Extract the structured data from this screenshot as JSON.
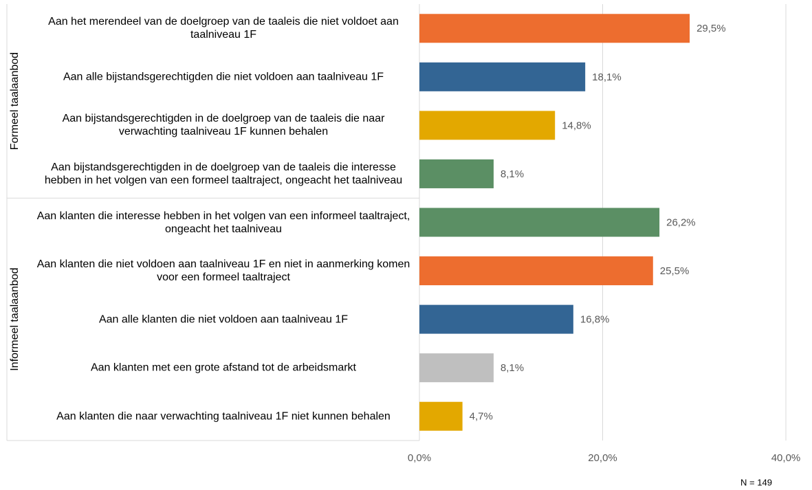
{
  "chart_data": {
    "type": "bar",
    "orientation": "horizontal",
    "groups": [
      {
        "name": "Formeel taalaanbod",
        "categories": [
          "Aan het merendeel van de doelgroep van de taaleis die niet voldoet aan taalniveau 1F",
          "Aan alle bijstandsgerechtigden die niet voldoen aan taalniveau 1F",
          "Aan bijstandsgerechtigden in de doelgroep van de taaleis die naar verwachting taalniveau 1F kunnen behalen",
          "Aan bijstandsgerechtigden in de doelgroep van de taaleis die interesse hebben in het volgen van een formeel taaltraject, ongeacht het taalniveau"
        ],
        "values": [
          29.5,
          18.1,
          14.8,
          8.1
        ],
        "value_labels": [
          "29,5%",
          "18,1%",
          "14,8%",
          "8,1%"
        ],
        "colors": [
          "#ed6d2f",
          "#336594",
          "#e3a800",
          "#5b8f64"
        ]
      },
      {
        "name": "Informeel taalaanbod",
        "categories": [
          "Aan klanten die interesse hebben in het volgen van een informeel taaltraject, ongeacht het taalniveau",
          "Aan klanten die niet voldoen aan taalniveau 1F en niet in aanmerking komen voor een formeel taaltraject",
          "Aan alle klanten die niet voldoen aan taalniveau 1F",
          "Aan klanten met een grote afstand tot de arbeidsmarkt",
          "Aan klanten die naar verwachting taalniveau 1F niet kunnen behalen"
        ],
        "values": [
          26.2,
          25.5,
          16.8,
          8.1,
          4.7
        ],
        "value_labels": [
          "26,2%",
          "25,5%",
          "16,8%",
          "8,1%",
          "4,7%"
        ],
        "colors": [
          "#5b8f64",
          "#ed6d2f",
          "#336594",
          "#bfbfbf",
          "#e3a800"
        ]
      }
    ],
    "xlim": [
      0,
      40
    ],
    "xticks": [
      {
        "value": 0,
        "label": "0,0%"
      },
      {
        "value": 20,
        "label": "20,0%"
      },
      {
        "value": 40,
        "label": "40,0%"
      }
    ],
    "grid": true,
    "note": "N = 149"
  }
}
